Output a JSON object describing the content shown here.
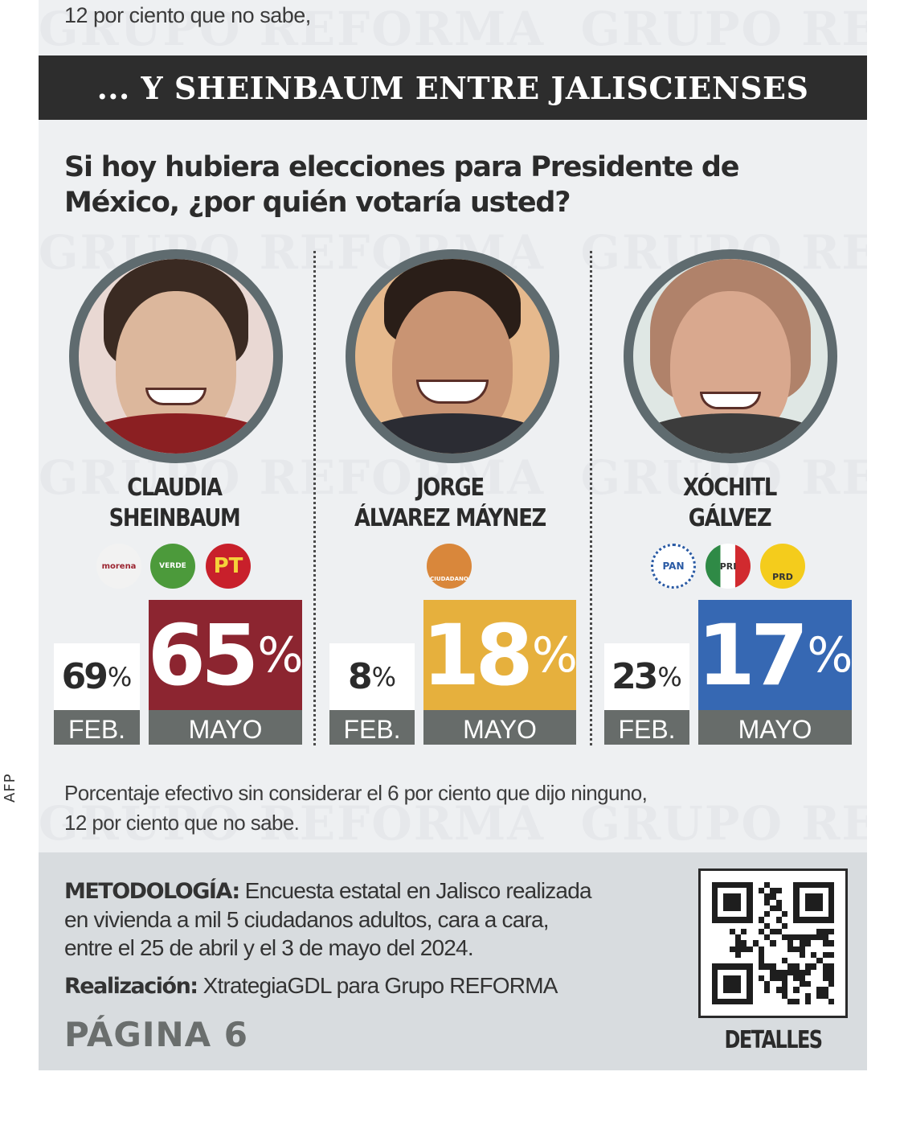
{
  "side_credit": "AFP",
  "previous_note_fragment": "12 por ciento que no sabe,",
  "watermark_text": "GRUPO REFORMA",
  "header": {
    "title": "... Y SHEINBAUM ENTRE JALISCIENSES",
    "background": "#2d2d2d"
  },
  "question": "Si hoy hubiera elecciones para Presidente de México, ¿por quién votaría usted?",
  "candidates": [
    {
      "first_name": "CLAUDIA",
      "last_name": "SHEINBAUM",
      "parties": [
        "MORENA",
        "PVEM",
        "PT"
      ],
      "feb_value": "69",
      "may_value": "65",
      "percent_sign": "%",
      "feb_label": "FEB.",
      "may_label": "MAYO",
      "color": "#8c2530"
    },
    {
      "first_name": "JORGE",
      "last_name": "ÁLVAREZ MÁYNEZ",
      "parties": [
        "MOVIMIENTO CIUDADANO"
      ],
      "party_logo_text": "CIUDADANO",
      "feb_value": "8",
      "may_value": "18",
      "percent_sign": "%",
      "feb_label": "FEB.",
      "may_label": "MAYO",
      "color": "#e6b03d"
    },
    {
      "first_name": "XÓCHITL",
      "last_name": "GÁLVEZ",
      "parties": [
        "PAN",
        "PRI",
        "PRD"
      ],
      "feb_value": "23",
      "may_value": "17",
      "percent_sign": "%",
      "feb_label": "FEB.",
      "may_label": "MAYO",
      "color": "#3668b3"
    }
  ],
  "party_logo_labels": {
    "morena": "morena",
    "pvem": "VERDE",
    "pt": "PT",
    "pan": "PAN",
    "pri": "PRI",
    "prd": "PRD",
    "mc": "CIUDADANO"
  },
  "footnote_line1": "Porcentaje efectivo sin considerar el 6 por ciento que dijo ninguno,",
  "footnote_line2": "12 por ciento que no sabe.",
  "methodology": {
    "label": "METODOLOGÍA:",
    "line1": " Encuesta estatal en Jalisco realizada",
    "line2": "en vivienda a mil 5 ciudadanos adultos, cara a cara,",
    "line3": "entre el 25 de abril y el 3 de mayo del 2024.",
    "realizacion_label": "Realización:",
    "realizacion_text": " XtrategiaGDL para Grupo REFORMA",
    "page_ref": "PÁGINA 6",
    "qr_label": "DETALLES"
  },
  "chart_data": {
    "type": "bar",
    "title": "... Y SHEINBAUM ENTRE JALISCIENSES",
    "subtitle": "Si hoy hubiera elecciones para Presidente de México, ¿por quién votaría usted?",
    "categories": [
      "Claudia Sheinbaum",
      "Jorge Álvarez Máynez",
      "Xóchitl Gálvez"
    ],
    "series": [
      {
        "name": "FEB.",
        "values": [
          69,
          8,
          23
        ]
      },
      {
        "name": "MAYO",
        "values": [
          65,
          18,
          17
        ]
      }
    ],
    "colors": {
      "Claudia Sheinbaum": "#8c2530",
      "Jorge Álvarez Máynez": "#e6b03d",
      "Xóchitl Gálvez": "#3668b3"
    },
    "unit": "%",
    "annotations": [
      "Porcentaje efectivo sin considerar el 6 por ciento que dijo ninguno, 12 por ciento que no sabe."
    ],
    "xlabel": "",
    "ylabel": "",
    "grid": false
  }
}
